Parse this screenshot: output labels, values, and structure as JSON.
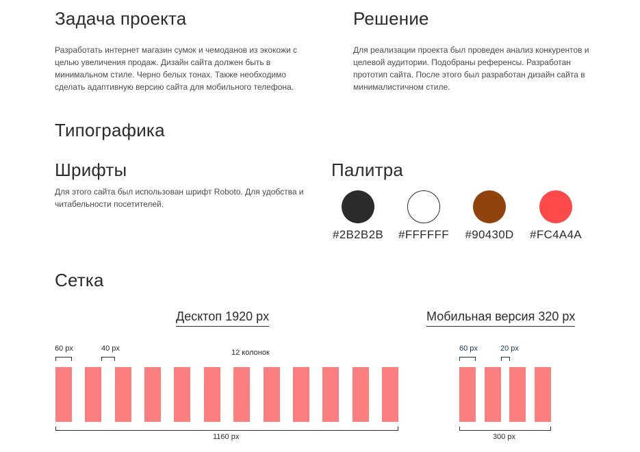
{
  "task": {
    "title": "Задача проекта",
    "text": "Разработать интернет магазин сумок и чемоданов из экокожи с целью увеличения продаж. Дизайн сайта должен быть в минимальном стиле. Черно белых тонах. Также необходимо сделать адаптивную версию сайта для мобильного телефона."
  },
  "solution": {
    "title": "Решение",
    "text": "Для реализации проекта был проведен анализ конкурентов и целевой аудитории. Подобраны референсы. Разработан прототип сайта. После этого был разработан дизайн сайта в минималистичном стиле."
  },
  "typography": {
    "title": "Типографика"
  },
  "fonts": {
    "title": "Шрифты",
    "text": "Для этого сайта был использован шрифт Roboto. Для удобства и читабельности посетителей."
  },
  "palette": {
    "title": "Палитра",
    "colors": [
      {
        "hex": "#2B2B2B",
        "value": "#2b2b2b"
      },
      {
        "hex": "#FFFFFF",
        "value": "#ffffff"
      },
      {
        "hex": "#90430D",
        "value": "#90430d"
      },
      {
        "hex": "#FC4A4A",
        "value": "#fc4a4a"
      }
    ]
  },
  "grid": {
    "title": "Сетка",
    "desktop": {
      "label": "Десктоп  1920 px",
      "column_width_label": "60 px",
      "gutter_label": "40 px",
      "columns_label": "12 колонок",
      "total_width_label": "1160 px",
      "column_count": 12,
      "column_color": "#fc7f7f"
    },
    "mobile": {
      "label": "Мобильная версия  320 px",
      "column_width_label": "60 px",
      "gutter_label": "20 px",
      "total_width_label": "300 px",
      "column_count": 4,
      "column_color": "#fc7f7f"
    }
  }
}
